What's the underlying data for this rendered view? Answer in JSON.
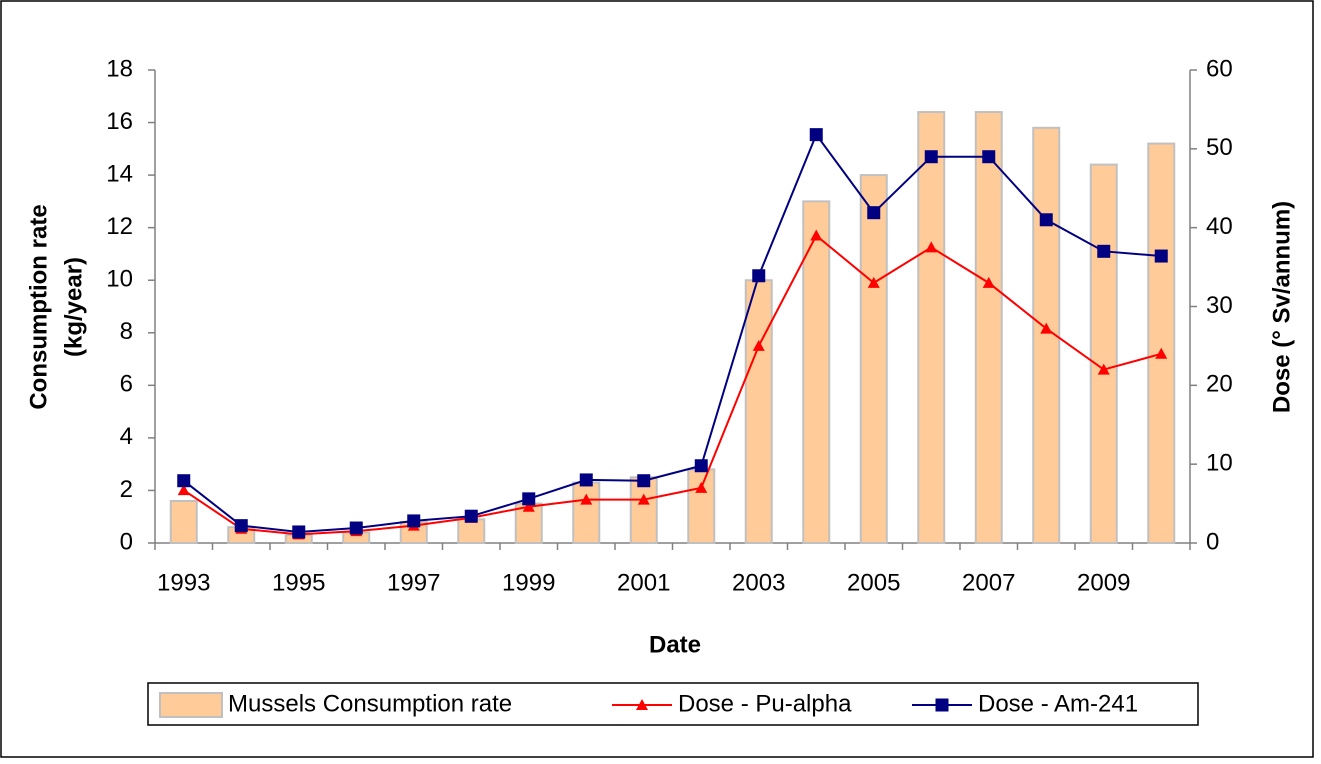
{
  "chart_data": {
    "type": "bar_line",
    "x_label": "Date",
    "y_label": [
      "Consumption rate",
      "(kg/year)"
    ],
    "y2_label": "Dose (° Sv/annum)",
    "categories": [
      "1993",
      null,
      "1995",
      null,
      "1997",
      null,
      "1999",
      null,
      "2001",
      null,
      "2003",
      null,
      "2005",
      null,
      "2007",
      null,
      "2009",
      null
    ],
    "ylim": [
      0,
      18
    ],
    "yticks": [
      0,
      2,
      4,
      6,
      8,
      10,
      12,
      14,
      16,
      18
    ],
    "y2lim": [
      0,
      60
    ],
    "y2ticks": [
      0,
      10,
      20,
      30,
      40,
      50,
      60
    ],
    "legend": "bottom",
    "series": [
      {
        "name": "Mussels Consumption rate",
        "kind": "bar",
        "color": "#ffcc99",
        "values": [
          1.6,
          0.6,
          0.3,
          0.4,
          0.8,
          0.9,
          1.5,
          2.3,
          2.5,
          2.8,
          10,
          13,
          14,
          16.4,
          16.4,
          15.8,
          14.4,
          15.2
        ]
      },
      {
        "name": "Dose - Pu-alpha",
        "kind": "line",
        "marker": "triangle",
        "axis": "y2",
        "color": "#ff0000",
        "values": [
          6.7,
          1.8,
          1.1,
          1.5,
          2.2,
          3.2,
          4.6,
          5.5,
          5.5,
          7,
          25,
          39,
          33,
          37.5,
          33,
          27.2,
          22,
          24
        ]
      },
      {
        "name": "Dose - Am-241",
        "kind": "line",
        "marker": "square",
        "axis": "y2",
        "color": "#000080",
        "values": [
          7.9,
          2.2,
          1.4,
          1.9,
          2.8,
          3.4,
          5.6,
          8,
          7.9,
          9.8,
          33.9,
          51.8,
          41.9,
          49,
          49,
          41,
          37,
          36.4
        ]
      }
    ]
  }
}
